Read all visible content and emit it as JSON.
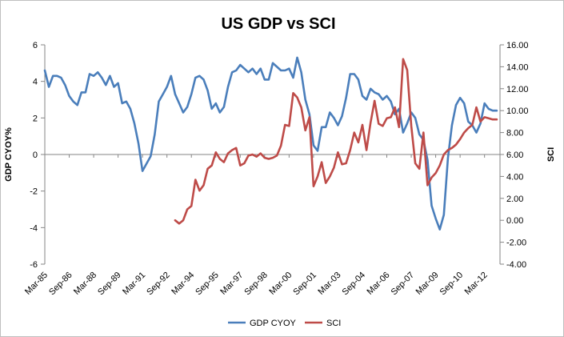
{
  "chart_data": {
    "type": "line",
    "title": "US GDP vs SCI",
    "xlabel": "",
    "ylabel_left": "GDP CYOY%",
    "ylabel_right": "SCI",
    "left_axis": {
      "min": -6,
      "max": 6,
      "ticks": [
        "-6",
        "-4",
        "-2",
        "0",
        "2",
        "4",
        "6"
      ]
    },
    "right_axis": {
      "min": -4,
      "max": 16,
      "ticks": [
        "-4.00",
        "-2.00",
        "0.00",
        "2.00",
        "4.00",
        "6.00",
        "8.00",
        "10.00",
        "12.00",
        "14.00",
        "16.00"
      ]
    },
    "x_range": [
      1985.0,
      2012.95
    ],
    "x_tick_labels": [
      "Mar-85",
      "Sep-86",
      "Mar-88",
      "Sep-89",
      "Mar-91",
      "Sep-92",
      "Mar-94",
      "Sep-95",
      "Mar-97",
      "Sep-98",
      "Mar-00",
      "Sep-01",
      "Mar-03",
      "Sep-04",
      "Mar-06",
      "Sep-07",
      "Mar-09",
      "Sep-10",
      "Mar-12"
    ],
    "legend_position": "bottom",
    "grid": false,
    "colors": {
      "gdp": "#4a7ebb",
      "sci": "#be4b48"
    },
    "series": [
      {
        "name": "GDP CYOY",
        "axis": "left",
        "x": [
          1985.0,
          1985.25,
          1985.5,
          1985.75,
          1986.0,
          1986.25,
          1986.5,
          1986.75,
          1987.0,
          1987.25,
          1987.5,
          1987.75,
          1988.0,
          1988.25,
          1988.5,
          1988.75,
          1989.0,
          1989.25,
          1989.5,
          1989.75,
          1990.0,
          1990.25,
          1990.5,
          1990.75,
          1991.0,
          1991.25,
          1991.5,
          1991.75,
          1992.0,
          1992.25,
          1992.5,
          1992.75,
          1993.0,
          1993.25,
          1993.5,
          1993.75,
          1994.0,
          1994.25,
          1994.5,
          1994.75,
          1995.0,
          1995.25,
          1995.5,
          1995.75,
          1996.0,
          1996.25,
          1996.5,
          1996.75,
          1997.0,
          1997.25,
          1997.5,
          1997.75,
          1998.0,
          1998.25,
          1998.5,
          1998.75,
          1999.0,
          1999.25,
          1999.5,
          1999.75,
          2000.0,
          2000.25,
          2000.5,
          2000.75,
          2001.0,
          2001.25,
          2001.5,
          2001.75,
          2002.0,
          2002.25,
          2002.5,
          2002.75,
          2003.0,
          2003.25,
          2003.5,
          2003.75,
          2004.0,
          2004.25,
          2004.5,
          2004.75,
          2005.0,
          2005.25,
          2005.5,
          2005.75,
          2006.0,
          2006.25,
          2006.5,
          2006.75,
          2007.0,
          2007.25,
          2007.5,
          2007.75,
          2008.0,
          2008.25,
          2008.5,
          2008.75,
          2009.0,
          2009.25,
          2009.5,
          2009.75,
          2010.0,
          2010.25,
          2010.5,
          2010.75,
          2011.0,
          2011.25,
          2011.5,
          2011.75,
          2012.0,
          2012.25,
          2012.5,
          2012.75
        ],
        "values": [
          4.6,
          3.7,
          4.3,
          4.3,
          4.2,
          3.8,
          3.2,
          2.9,
          2.7,
          3.4,
          3.4,
          4.4,
          4.3,
          4.5,
          4.2,
          3.8,
          4.3,
          3.7,
          3.9,
          2.8,
          2.9,
          2.5,
          1.7,
          0.6,
          -0.9,
          -0.5,
          -0.1,
          1.1,
          2.9,
          3.3,
          3.7,
          4.3,
          3.3,
          2.8,
          2.3,
          2.6,
          3.3,
          4.2,
          4.3,
          4.1,
          3.5,
          2.5,
          2.8,
          2.3,
          2.6,
          3.7,
          4.5,
          4.6,
          4.9,
          4.7,
          4.5,
          4.7,
          4.4,
          4.7,
          4.1,
          4.1,
          5.0,
          4.8,
          4.6,
          4.6,
          4.7,
          4.2,
          5.3,
          4.5,
          3.0,
          2.2,
          0.5,
          0.2,
          1.5,
          1.5,
          2.3,
          2.0,
          1.6,
          2.1,
          3.1,
          4.4,
          4.4,
          4.1,
          3.2,
          3.0,
          3.6,
          3.4,
          3.3,
          3.0,
          3.2,
          2.9,
          2.2,
          2.5,
          1.2,
          1.7,
          2.3,
          2.0,
          1.1,
          0.8,
          -0.3,
          -2.8,
          -3.5,
          -4.1,
          -3.3,
          -0.2,
          1.6,
          2.7,
          3.1,
          2.8,
          1.8,
          1.6,
          1.2,
          1.7,
          2.8,
          2.5,
          2.4,
          2.4
        ]
      },
      {
        "name": "SCI",
        "axis": "right",
        "x": [
          1993.0,
          1993.25,
          1993.5,
          1993.75,
          1994.0,
          1994.25,
          1994.5,
          1994.75,
          1995.0,
          1995.25,
          1995.5,
          1995.75,
          1996.0,
          1996.25,
          1996.5,
          1996.75,
          1997.0,
          1997.25,
          1997.5,
          1997.75,
          1998.0,
          1998.25,
          1998.5,
          1998.75,
          1999.0,
          1999.25,
          1999.5,
          1999.75,
          2000.0,
          2000.25,
          2000.5,
          2000.75,
          2001.0,
          2001.25,
          2001.5,
          2001.75,
          2002.0,
          2002.25,
          2002.5,
          2002.75,
          2003.0,
          2003.25,
          2003.5,
          2003.75,
          2004.0,
          2004.25,
          2004.5,
          2004.75,
          2005.0,
          2005.25,
          2005.5,
          2005.75,
          2006.0,
          2006.25,
          2006.5,
          2006.75,
          2007.0,
          2007.25,
          2007.5,
          2007.75,
          2008.0,
          2008.25,
          2008.5,
          2008.75,
          2009.0,
          2009.25,
          2009.5,
          2009.75,
          2010.0,
          2010.25,
          2010.5,
          2010.75,
          2011.0,
          2011.25,
          2011.5,
          2011.75,
          2012.0,
          2012.25,
          2012.5,
          2012.75
        ],
        "values": [
          0.0,
          -0.3,
          0.0,
          1.0,
          1.3,
          3.7,
          2.7,
          3.2,
          4.7,
          5.0,
          6.2,
          5.6,
          5.3,
          6.1,
          6.4,
          6.6,
          5.0,
          5.2,
          5.9,
          6.0,
          5.8,
          6.1,
          5.7,
          5.6,
          5.7,
          5.9,
          6.8,
          8.7,
          8.6,
          11.6,
          11.2,
          10.3,
          8.2,
          9.4,
          3.1,
          4.0,
          5.3,
          3.4,
          4.0,
          4.8,
          6.2,
          5.1,
          5.2,
          6.4,
          8.0,
          7.1,
          8.7,
          6.4,
          8.9,
          10.9,
          8.8,
          8.6,
          9.3,
          9.4,
          10.3,
          8.5,
          14.7,
          13.7,
          8.6,
          5.2,
          4.7,
          8.0,
          3.2,
          3.9,
          4.3,
          5.0,
          6.0,
          6.4,
          6.6,
          6.9,
          7.4,
          8.0,
          8.4,
          8.7,
          10.3,
          9.0,
          9.4,
          9.3,
          9.2,
          9.2
        ]
      }
    ]
  }
}
